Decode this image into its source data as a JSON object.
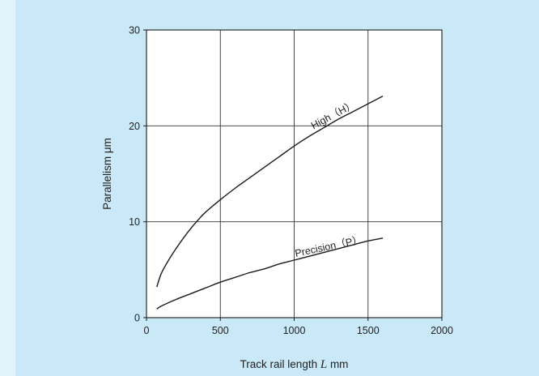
{
  "colors": {
    "page_background": "#e3f3fb",
    "panel_background": "#c9e8f8",
    "plot_background": "#ffffff",
    "line_color": "#1a1a1a",
    "grid_color": "#333333"
  },
  "chart_data": {
    "type": "line",
    "title": "",
    "xlabel_main": "Track rail length ",
    "xlabel_italic": "L",
    "xlabel_unit": " mm",
    "ylabel": "Parallelism μm",
    "xlim": [
      0,
      2000
    ],
    "ylim": [
      0,
      30
    ],
    "xticks": [
      0,
      500,
      1000,
      1500,
      2000
    ],
    "yticks": [
      0,
      10,
      20,
      30
    ],
    "xtick_labels": [
      "0",
      "500",
      "1000",
      "1500",
      "2000"
    ],
    "ytick_labels": [
      "0",
      "10",
      "20",
      "30"
    ],
    "grid": true,
    "legend": "none",
    "series": [
      {
        "name": "High（H）",
        "x": [
          70,
          100,
          150,
          200,
          250,
          300,
          350,
          400,
          500,
          600,
          700,
          800,
          900,
          1000,
          1100,
          1200,
          1300,
          1400,
          1500,
          1600
        ],
        "y": [
          3.2,
          4.6,
          6.0,
          7.2,
          8.3,
          9.3,
          10.2,
          11.0,
          12.3,
          13.5,
          14.6,
          15.7,
          16.8,
          17.9,
          18.9,
          19.8,
          20.7,
          21.5,
          22.3,
          23.1
        ]
      },
      {
        "name": "Precision（P）",
        "x": [
          70,
          100,
          200,
          300,
          400,
          500,
          600,
          700,
          800,
          900,
          1000,
          1100,
          1200,
          1300,
          1400,
          1500,
          1600
        ],
        "y": [
          0.9,
          1.2,
          1.9,
          2.5,
          3.1,
          3.7,
          4.2,
          4.7,
          5.1,
          5.6,
          6.0,
          6.4,
          6.8,
          7.2,
          7.6,
          8.0,
          8.3
        ]
      }
    ]
  }
}
